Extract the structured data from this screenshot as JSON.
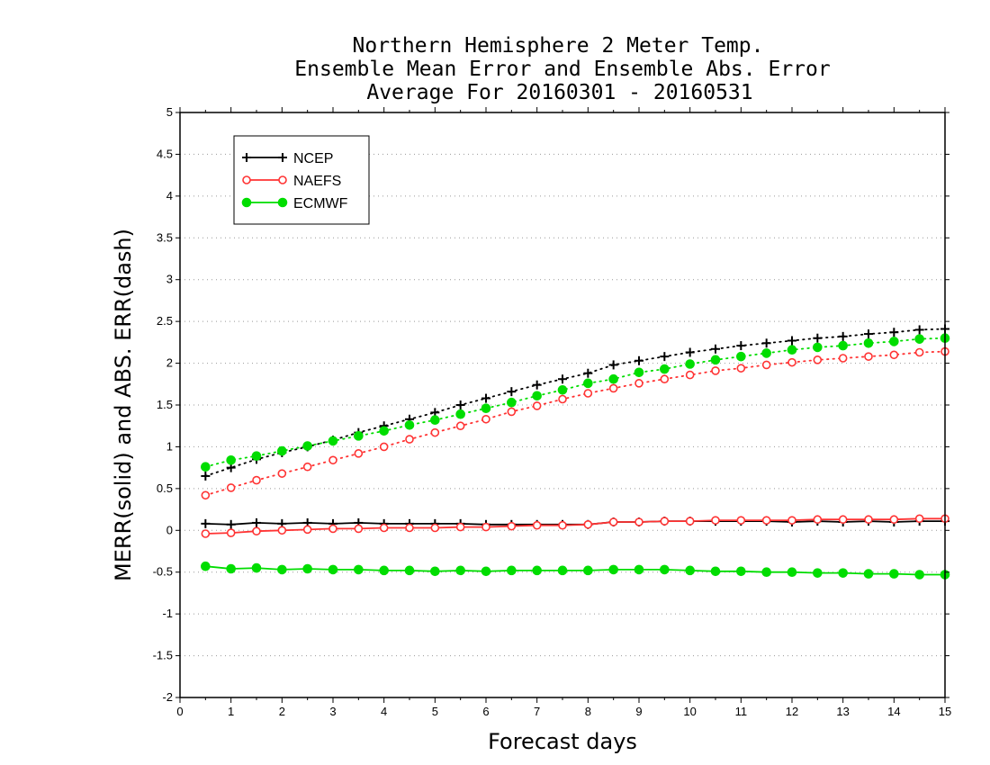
{
  "chart_data": {
    "type": "line",
    "title_lines": [
      "Northern Hemisphere 2 Meter Temp.",
      "Ensemble Mean Error and Ensemble Abs. Error",
      "Average For 20160301 - 20160531"
    ],
    "xlabel": "Forecast days",
    "ylabel": "MERR(solid) and ABS. ERR(dash)",
    "xlim": [
      0,
      15
    ],
    "ylim": [
      -2,
      5
    ],
    "xticks": [
      "0",
      "1",
      "2",
      "3",
      "4",
      "5",
      "6",
      "7",
      "8",
      "9",
      "10",
      "11",
      "12",
      "13",
      "14",
      "15"
    ],
    "yticks": [
      "-2",
      "-1.5",
      "-1",
      "-0.5",
      "0",
      "0.5",
      "1",
      "1.5",
      "2",
      "2.5",
      "3",
      "3.5",
      "4",
      "4.5",
      "5"
    ],
    "grid": "horizontal dotted",
    "legend_position": "top-left",
    "x": [
      0.5,
      1,
      1.5,
      2,
      2.5,
      3,
      3.5,
      4,
      4.5,
      5,
      5.5,
      6,
      6.5,
      7,
      7.5,
      8,
      8.5,
      9,
      9.5,
      10,
      10.5,
      11,
      11.5,
      12,
      12.5,
      13,
      13.5,
      14,
      14.5,
      15
    ],
    "series": [
      {
        "name": "NCEP",
        "color": "#000000",
        "marker": "plus",
        "merr": [
          0.08,
          0.07,
          0.09,
          0.08,
          0.09,
          0.08,
          0.09,
          0.08,
          0.08,
          0.08,
          0.08,
          0.07,
          0.07,
          0.07,
          0.07,
          0.07,
          0.1,
          0.1,
          0.11,
          0.11,
          0.11,
          0.11,
          0.11,
          0.1,
          0.11,
          0.1,
          0.11,
          0.1,
          0.11,
          0.11
        ],
        "abs_err": [
          0.65,
          0.75,
          0.85,
          0.93,
          1.0,
          1.08,
          1.17,
          1.25,
          1.33,
          1.41,
          1.5,
          1.58,
          1.66,
          1.74,
          1.81,
          1.88,
          1.98,
          2.03,
          2.08,
          2.13,
          2.17,
          2.21,
          2.24,
          2.27,
          2.3,
          2.32,
          2.35,
          2.37,
          2.4,
          2.41
        ]
      },
      {
        "name": "NAEFS",
        "color": "#ff3333",
        "marker": "open-circle",
        "merr": [
          -0.04,
          -0.03,
          -0.01,
          0.0,
          0.01,
          0.02,
          0.02,
          0.03,
          0.03,
          0.03,
          0.04,
          0.04,
          0.05,
          0.06,
          0.06,
          0.07,
          0.1,
          0.1,
          0.11,
          0.11,
          0.12,
          0.12,
          0.12,
          0.12,
          0.13,
          0.13,
          0.13,
          0.13,
          0.14,
          0.14
        ],
        "abs_err": [
          0.42,
          0.51,
          0.6,
          0.68,
          0.76,
          0.84,
          0.92,
          1.0,
          1.09,
          1.17,
          1.25,
          1.33,
          1.42,
          1.49,
          1.57,
          1.64,
          1.7,
          1.76,
          1.81,
          1.86,
          1.91,
          1.94,
          1.98,
          2.01,
          2.04,
          2.06,
          2.08,
          2.1,
          2.13,
          2.14
        ]
      },
      {
        "name": "ECMWF",
        "color": "#00dd00",
        "marker": "filled-circle",
        "merr": [
          -0.43,
          -0.46,
          -0.45,
          -0.47,
          -0.46,
          -0.47,
          -0.47,
          -0.48,
          -0.48,
          -0.49,
          -0.48,
          -0.49,
          -0.48,
          -0.48,
          -0.48,
          -0.48,
          -0.47,
          -0.47,
          -0.47,
          -0.48,
          -0.49,
          -0.49,
          -0.5,
          -0.5,
          -0.51,
          -0.51,
          -0.52,
          -0.52,
          -0.53,
          -0.53
        ],
        "abs_err": [
          0.76,
          0.84,
          0.89,
          0.95,
          1.01,
          1.07,
          1.13,
          1.19,
          1.26,
          1.32,
          1.39,
          1.46,
          1.53,
          1.61,
          1.68,
          1.76,
          1.81,
          1.89,
          1.93,
          1.99,
          2.04,
          2.08,
          2.12,
          2.16,
          2.19,
          2.21,
          2.24,
          2.26,
          2.29,
          2.3
        ]
      }
    ]
  }
}
